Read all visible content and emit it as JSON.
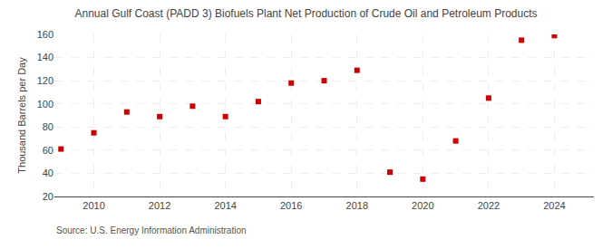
{
  "chart_data": {
    "type": "scatter",
    "title": "Annual Gulf Coast (PADD 3) Biofuels Plant Net Production of Crude Oil and Petroleum Products",
    "ylabel": "Thousand Barrels per Day",
    "annotations": [
      "Source: U.S. Energy Information Administration"
    ],
    "x": [
      2009,
      2010,
      2011,
      2012,
      2013,
      2014,
      2015,
      2016,
      2017,
      2018,
      2019,
      2020,
      2021,
      2022,
      2023,
      2024
    ],
    "values": [
      61,
      75,
      93,
      89,
      98,
      89,
      102,
      118,
      120,
      129,
      41,
      35,
      68,
      105,
      155,
      159
    ],
    "color": "#cc0000",
    "marker": "square",
    "xlim": [
      2008.8,
      2025.2
    ],
    "xticks": [
      2010,
      2012,
      2014,
      2016,
      2018,
      2020,
      2022,
      2024
    ],
    "ylim": [
      20,
      160
    ],
    "yticks": [
      20,
      40,
      60,
      80,
      100,
      120,
      140,
      160
    ],
    "grid": true
  }
}
